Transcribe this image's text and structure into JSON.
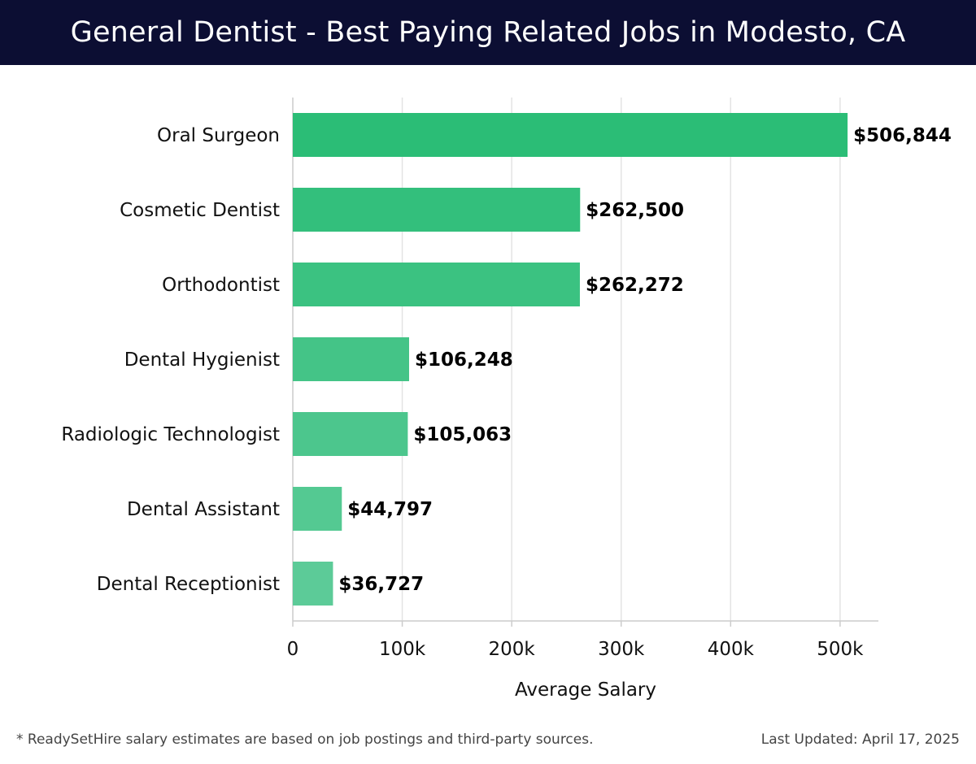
{
  "header": {
    "title": "General Dentist - Best Paying Related Jobs in Modesto, CA"
  },
  "chart_data": {
    "type": "bar",
    "orientation": "horizontal",
    "title": "General Dentist - Best Paying Related Jobs in Modesto, CA",
    "xlabel": "Average Salary",
    "ylabel": "",
    "categories": [
      "Oral Surgeon",
      "Cosmetic Dentist",
      "Orthodontist",
      "Dental Hygienist",
      "Radiologic Technologist",
      "Dental Assistant",
      "Dental Receptionist"
    ],
    "values": [
      506844,
      262500,
      262272,
      106248,
      105063,
      44797,
      36727
    ],
    "value_labels": [
      "$506,844",
      "$262,500",
      "$262,272",
      "$106,248",
      "$105,063",
      "$44,797",
      "$36,727"
    ],
    "xlim": [
      0,
      535000
    ],
    "xticks": [
      0,
      100000,
      200000,
      300000,
      400000,
      500000
    ],
    "xtick_labels": [
      "0",
      "100k",
      "200k",
      "300k",
      "400k",
      "500k"
    ],
    "grid": true,
    "colors": {
      "bar_top": "#2bbd76",
      "bar_bottom": "#5ccb98",
      "grid": "#e3e3e3",
      "axis": "#cccccc",
      "text": "#111111"
    }
  },
  "footer": {
    "note": "* ReadySetHire salary estimates are based on job postings and third-party sources.",
    "updated": "Last Updated: April 17, 2025"
  }
}
